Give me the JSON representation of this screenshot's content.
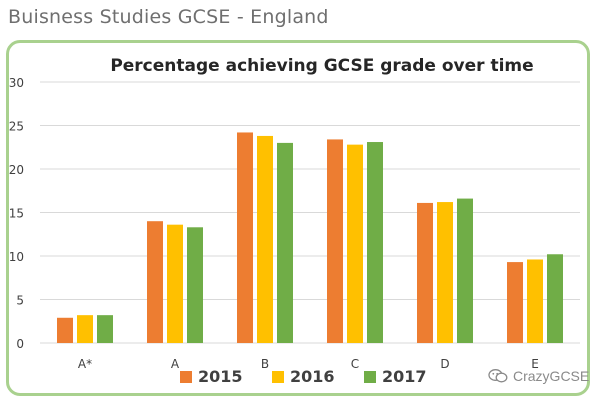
{
  "page": {
    "heading": "Buisness Studies  GCSE - England"
  },
  "watermark": {
    "label": "CrazyGCSE",
    "icon": "chat-bubbles-icon"
  },
  "colors": {
    "frame": "#a9d18e",
    "2015": "#ed7d31",
    "2016": "#ffc000",
    "2017": "#70ad47",
    "grid": "#d9d9d9",
    "text": "#404040"
  },
  "chart_data": {
    "type": "bar",
    "title": "Percentage achieving GCSE grade over time",
    "xlabel": "",
    "ylabel": "",
    "categories": [
      "A*",
      "A",
      "B",
      "C",
      "D",
      "E"
    ],
    "series": [
      {
        "name": "2015",
        "color": "#ed7d31",
        "values": [
          2.9,
          14.0,
          24.2,
          23.4,
          16.1,
          9.3
        ]
      },
      {
        "name": "2016",
        "color": "#ffc000",
        "values": [
          3.2,
          13.6,
          23.8,
          22.8,
          16.2,
          9.6
        ]
      },
      {
        "name": "2017",
        "color": "#70ad47",
        "values": [
          3.2,
          13.3,
          23.0,
          23.1,
          16.6,
          10.2
        ]
      }
    ],
    "ylim": [
      0,
      30
    ],
    "yticks": [
      0,
      5,
      10,
      15,
      20,
      25,
      30
    ],
    "grid": true,
    "legend_position": "bottom"
  }
}
